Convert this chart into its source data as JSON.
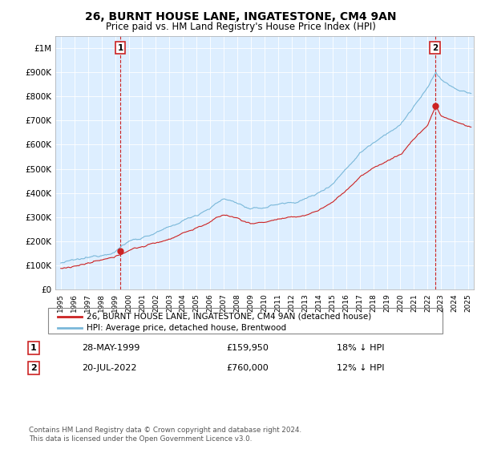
{
  "title": "26, BURNT HOUSE LANE, INGATESTONE, CM4 9AN",
  "subtitle": "Price paid vs. HM Land Registry's House Price Index (HPI)",
  "ylim": [
    0,
    1050000
  ],
  "yticks": [
    0,
    100000,
    200000,
    300000,
    400000,
    500000,
    600000,
    700000,
    800000,
    900000,
    1000000
  ],
  "ytick_labels": [
    "£0",
    "£100K",
    "£200K",
    "£300K",
    "£400K",
    "£500K",
    "£600K",
    "£700K",
    "£800K",
    "£900K",
    "£1M"
  ],
  "hpi_color": "#7ab8d9",
  "price_color": "#cc2222",
  "annotation_box_color": "#cc2222",
  "transaction1_date": "28-MAY-1999",
  "transaction1_price": 159950,
  "transaction1_hpi_pct": "18% ↓ HPI",
  "transaction2_date": "20-JUL-2022",
  "transaction2_price": 760000,
  "transaction2_hpi_pct": "12% ↓ HPI",
  "legend_label1": "26, BURNT HOUSE LANE, INGATESTONE, CM4 9AN (detached house)",
  "legend_label2": "HPI: Average price, detached house, Brentwood",
  "footnote": "Contains HM Land Registry data © Crown copyright and database right 2024.\nThis data is licensed under the Open Government Licence v3.0.",
  "background_color": "#ffffff",
  "chart_bg_color": "#ddeeff",
  "grid_color": "#ffffff",
  "t1_year": 1999.38,
  "t2_year": 2022.54,
  "t1_price": 159950,
  "t2_price": 760000
}
